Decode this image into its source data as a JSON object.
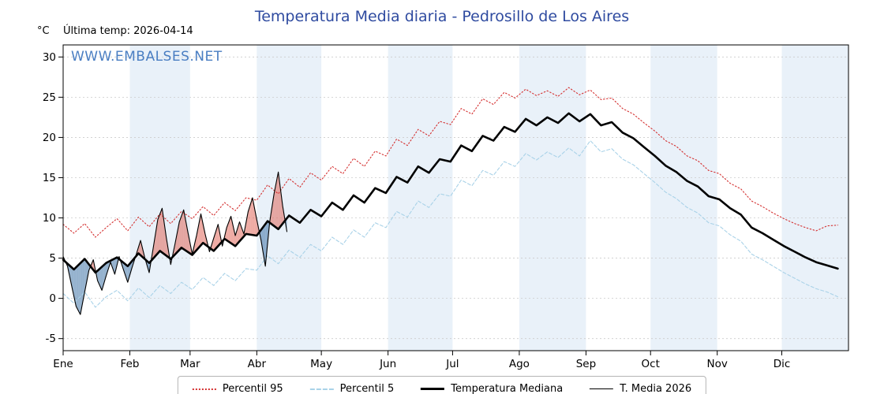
{
  "header": {
    "unit": "°C",
    "last_temp": "Última temp: 2026-04-14",
    "watermark": "WWW.EMBALSES.NET"
  },
  "chart_data": {
    "type": "line",
    "title": "Temperatura Media diaria - Pedrosillo de Los Aires",
    "xlabel": "",
    "ylabel": "°C",
    "x_axis": {
      "tick_labels": [
        "Ene",
        "Feb",
        "Mar",
        "Abr",
        "May",
        "Jun",
        "Jul",
        "Ago",
        "Sep",
        "Oct",
        "Nov",
        "Dic"
      ],
      "month_start_days": [
        0,
        31,
        59,
        90,
        120,
        151,
        181,
        212,
        243,
        273,
        304,
        334
      ],
      "xlim": [
        0,
        365
      ]
    },
    "y_axis": {
      "ticks": [
        -5,
        0,
        5,
        10,
        15,
        20,
        25,
        30
      ],
      "ylim": [
        -6.5,
        31.5
      ],
      "grid": true
    },
    "band_color": "#e9f1f9",
    "grid_color": "#cccccc",
    "series": [
      {
        "name": "Percentil 95",
        "color": "#d43030",
        "style": "dotted",
        "width": 1.1,
        "day_start": 0,
        "day_step": 5,
        "values": [
          9.2,
          8.1,
          9.3,
          7.6,
          8.8,
          9.9,
          8.4,
          10.1,
          8.9,
          10.5,
          9.3,
          10.8,
          9.9,
          11.4,
          10.3,
          11.9,
          10.9,
          12.5,
          12.2,
          14.1,
          13.0,
          14.9,
          13.8,
          15.6,
          14.7,
          16.4,
          15.5,
          17.4,
          16.4,
          18.3,
          17.7,
          19.8,
          19.0,
          21.0,
          20.2,
          22.0,
          21.6,
          23.6,
          22.9,
          24.8,
          24.1,
          25.6,
          24.9,
          26.0,
          25.2,
          25.8,
          25.1,
          26.2,
          25.3,
          25.9,
          24.7,
          24.9,
          23.6,
          22.9,
          21.8,
          20.8,
          19.6,
          18.9,
          17.7,
          17.1,
          15.9,
          15.5,
          14.3,
          13.6,
          12.1,
          11.4,
          10.6,
          9.9,
          9.3,
          8.8,
          8.4,
          9.0,
          9.1
        ]
      },
      {
        "name": "Percentil 5",
        "color": "#a9d2e8",
        "style": "dashed",
        "width": 1.1,
        "day_start": 0,
        "day_step": 5,
        "values": [
          0.6,
          -0.6,
          0.8,
          -1.1,
          0.2,
          1.0,
          -0.3,
          1.3,
          0.1,
          1.6,
          0.6,
          2.0,
          1.1,
          2.6,
          1.6,
          3.1,
          2.2,
          3.7,
          3.5,
          5.3,
          4.3,
          6.0,
          5.1,
          6.7,
          5.9,
          7.6,
          6.7,
          8.5,
          7.6,
          9.4,
          8.8,
          10.8,
          10.1,
          12.1,
          11.3,
          13.0,
          12.7,
          14.7,
          14.0,
          15.9,
          15.3,
          17.0,
          16.4,
          18.0,
          17.2,
          18.2,
          17.5,
          18.7,
          17.7,
          19.6,
          18.2,
          18.6,
          17.3,
          16.6,
          15.5,
          14.4,
          13.2,
          12.4,
          11.3,
          10.6,
          9.4,
          9.0,
          7.9,
          7.1,
          5.5,
          4.8,
          4.0,
          3.2,
          2.5,
          1.8,
          1.2,
          0.8,
          0.2
        ]
      },
      {
        "name": "Temperatura Mediana",
        "color": "#000000",
        "style": "solid",
        "width": 2.6,
        "day_start": 0,
        "day_step": 5,
        "values": [
          4.8,
          3.6,
          4.9,
          3.2,
          4.4,
          5.1,
          4.0,
          5.6,
          4.4,
          5.9,
          4.9,
          6.3,
          5.4,
          6.9,
          5.9,
          7.4,
          6.5,
          8.0,
          7.8,
          9.6,
          8.6,
          10.3,
          9.4,
          11.0,
          10.2,
          11.9,
          11.0,
          12.8,
          11.9,
          13.7,
          13.1,
          15.1,
          14.4,
          16.4,
          15.6,
          17.3,
          17.0,
          19.0,
          18.3,
          20.2,
          19.6,
          21.3,
          20.7,
          22.3,
          21.5,
          22.5,
          21.8,
          23.0,
          22.0,
          22.9,
          21.5,
          21.9,
          20.6,
          19.9,
          18.8,
          17.7,
          16.5,
          15.7,
          14.6,
          13.9,
          12.7,
          12.3,
          11.2,
          10.4,
          8.8,
          8.1,
          7.3,
          6.5,
          5.8,
          5.1,
          4.5,
          4.1,
          3.7
        ]
      },
      {
        "name": "T. Media 2026",
        "color": "#000000",
        "style": "solid",
        "width": 1.1,
        "day_start": 0,
        "day_step": 2,
        "values": [
          5.2,
          4.0,
          1.5,
          -1.0,
          -2.0,
          0.8,
          3.5,
          4.8,
          2.2,
          1.0,
          2.8,
          4.5,
          3.0,
          5.2,
          3.6,
          2.0,
          3.8,
          5.5,
          7.2,
          5.0,
          3.2,
          6.5,
          9.8,
          11.2,
          7.5,
          4.2,
          6.8,
          9.5,
          11.0,
          8.2,
          5.5,
          7.8,
          10.5,
          8.0,
          5.8,
          7.5,
          9.2,
          6.5,
          8.8,
          10.2,
          7.8,
          9.5,
          8.0,
          10.8,
          12.5,
          9.8,
          7.2,
          4.0,
          9.5,
          13.0,
          15.7,
          11.5,
          8.3
        ]
      }
    ],
    "fills": {
      "between": [
        "T. Media 2026",
        "Temperatura Mediana"
      ],
      "above_color": "#e0665a",
      "above_opacity": 0.55,
      "below_color": "#4f7fae",
      "below_opacity": 0.6
    },
    "legend_position": "bottom-center"
  }
}
